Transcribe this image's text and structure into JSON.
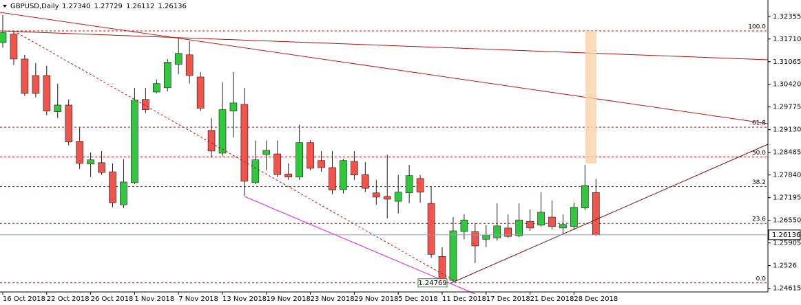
{
  "chart_data": {
    "type": "candlestick",
    "title": "GBPUSD,Daily",
    "header_labels": [
      "1.27340",
      "1.27729",
      "1.26112",
      "1.26136"
    ],
    "categories": [
      "16 Oct 2018",
      null,
      null,
      null,
      "22 Oct 2018",
      null,
      null,
      null,
      "26 Oct 2018",
      null,
      null,
      null,
      "1 Nov 2018",
      null,
      null,
      null,
      "7 Nov 2018",
      null,
      null,
      null,
      "13 Nov 2018",
      null,
      null,
      null,
      "19 Nov 2018",
      null,
      null,
      null,
      "23 Nov 2018",
      null,
      null,
      null,
      "29 Nov 2018",
      null,
      null,
      null,
      "5 Dec 2018",
      null,
      null,
      null,
      "11 Dec 2018",
      null,
      null,
      null,
      "17 Dec 2018",
      null,
      null,
      null,
      "21 Dec 2018",
      null,
      null,
      null,
      "28 Dec 2018",
      null,
      null
    ],
    "open": [
      1.3161,
      1.3185,
      1.3114,
      1.3067,
      1.3067,
      1.2964,
      1.2983,
      1.288,
      1.2815,
      1.2819,
      1.2793,
      1.2699,
      1.2762,
      1.2999,
      1.302,
      1.3032,
      1.3099,
      1.3126,
      1.3063,
      1.2911,
      1.2846,
      1.2966,
      1.2985,
      1.2762,
      1.2842,
      1.2844,
      1.2787,
      1.2778,
      1.2876,
      1.2825,
      1.2805,
      1.2742,
      1.2823,
      1.2785,
      1.2733,
      1.2723,
      1.2709,
      1.2733,
      1.2774,
      1.2703,
      1.2552,
      1.2484,
      1.2623,
      1.2623,
      1.2601,
      1.2605,
      1.2633,
      1.2611,
      1.2652,
      1.2641,
      1.2664,
      1.2633,
      1.2637,
      1.269,
      1.2734
    ],
    "high": [
      1.3239,
      1.3194,
      1.3126,
      1.3103,
      1.3095,
      1.3044,
      1.2999,
      1.2919,
      1.2848,
      1.2852,
      1.2817,
      1.2829,
      1.3032,
      1.3032,
      1.3056,
      1.3114,
      1.3173,
      1.3165,
      1.3077,
      1.2946,
      1.3048,
      1.3077,
      1.3032,
      1.2882,
      1.2882,
      1.2882,
      1.2817,
      1.2927,
      1.2883,
      1.2852,
      1.2852,
      1.2829,
      1.2852,
      1.2821,
      1.277,
      1.2842,
      1.2784,
      1.2813,
      1.2784,
      1.275,
      1.2578,
      1.2664,
      1.2672,
      1.2647,
      1.2641,
      1.2703,
      1.2672,
      1.2703,
      1.2686,
      1.2735,
      1.2711,
      1.2672,
      1.2705,
      1.2813,
      1.27729
    ],
    "low": [
      1.3146,
      1.3097,
      1.3009,
      1.3005,
      1.2954,
      1.2946,
      1.2868,
      1.2801,
      1.2778,
      1.2784,
      1.2692,
      1.269,
      1.2758,
      1.296,
      1.3016,
      1.3022,
      1.3071,
      1.3044,
      1.2966,
      1.2833,
      1.2837,
      1.2891,
      1.2725,
      1.2758,
      1.2797,
      1.2778,
      1.277,
      1.277,
      1.2797,
      1.2793,
      1.2729,
      1.2731,
      1.277,
      1.2735,
      1.2699,
      1.266,
      1.2674,
      1.2703,
      1.2705,
      1.2548,
      1.24769,
      1.248,
      1.2601,
      1.2533,
      1.2578,
      1.2597,
      1.2605,
      1.2607,
      1.2625,
      1.2637,
      1.2629,
      1.2617,
      1.2627,
      1.2684,
      1.26112
    ],
    "close": [
      1.3189,
      1.3114,
      1.3016,
      1.3016,
      1.2966,
      1.2983,
      1.2878,
      1.2817,
      1.2827,
      1.2791,
      1.2705,
      1.2764,
      1.2997,
      1.297,
      1.3044,
      1.3105,
      1.313,
      1.3067,
      1.2974,
      1.2852,
      1.297,
      1.2989,
      1.2766,
      1.2827,
      1.2854,
      1.2785,
      1.2778,
      1.2876,
      1.2803,
      1.2805,
      1.2741,
      1.2825,
      1.2784,
      1.2746,
      1.2721,
      1.2715,
      1.2735,
      1.2782,
      1.2735,
      1.2558,
      1.2484,
      1.2625,
      1.2656,
      1.2582,
      1.2613,
      1.2639,
      1.2609,
      1.2656,
      1.2633,
      1.2678,
      1.2637,
      1.2643,
      1.2692,
      1.2754,
      1.26136
    ],
    "up_color": "#2fc83c",
    "down_color": "#f2534a",
    "ylim": [
      1.2451,
      1.3282
    ],
    "yticks": [
      1.32355,
      {
        "value": 1.3171,
        "label": "1.31710"
      },
      1.31065,
      {
        "value": 1.3042,
        "label": "1.30420"
      },
      1.29775,
      {
        "value": 1.2913,
        "label": "1.29130"
      },
      1.28485,
      {
        "value": 1.2784,
        "label": "1.27840"
      },
      1.27195,
      {
        "value": 1.2655,
        "label": "1.26550"
      },
      1.25905,
      1.2526,
      1.24615
    ],
    "fibonacci": {
      "low": 1.24769,
      "high": 1.3194,
      "color": "#a01010",
      "levels": [
        {
          "value": 0,
          "label": "0.0"
        },
        23.6,
        38.2,
        {
          "value": 50,
          "label": "50.0"
        },
        61.8,
        {
          "value": 100,
          "label": "100.0"
        }
      ]
    }
  }
}
